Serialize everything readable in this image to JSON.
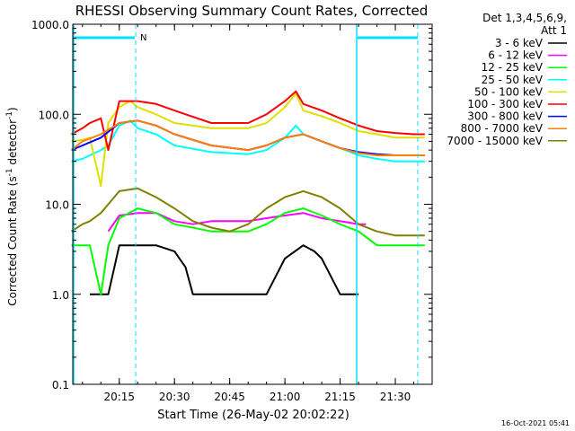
{
  "chart_data": {
    "type": "line",
    "title": "RHESSI Observing Summary Count Rates, Corrected",
    "xlabel": "Start Time (26-May-02 20:02:22)",
    "ylabel": "Corrected Count Rate (s-1 detector-1)",
    "ylabel_parts": {
      "main": "Corrected Count Rate (s",
      "sup1": "-1",
      "mid": " detector",
      "sup2": "-1",
      "end": ")"
    },
    "yscale": "log",
    "ylim": [
      0.1,
      1000
    ],
    "ytick_labels": [
      "0.1",
      "1.0",
      "10.0",
      "100.0",
      "1000.0"
    ],
    "ytick_values": [
      0.1,
      1,
      10,
      100,
      1000
    ],
    "xlim": [
      "20:02:22",
      "21:40:00"
    ],
    "xtick_labels": [
      "20:15",
      "20:30",
      "20:45",
      "21:00",
      "21:15",
      "21:30"
    ],
    "footer_date": "16-Oct-2021 05:41",
    "legend_header": [
      "Det 1,3,4,5,6,9,",
      "Att 1"
    ],
    "legend_position": "right",
    "night_marker_label": "N",
    "night_bar_color": "#00e0ff",
    "series": [
      {
        "name": "3 - 6 keV",
        "color": "#000000",
        "x": [
          "20:07",
          "20:10",
          "20:12",
          "20:15",
          "20:20",
          "20:25",
          "20:30",
          "20:33",
          "20:35",
          "20:40",
          "20:50",
          "20:55",
          "21:00",
          "21:05",
          "21:08",
          "21:10",
          "21:15",
          "21:20"
        ],
        "values": [
          1,
          1,
          1,
          3.5,
          3.5,
          3.5,
          3.0,
          2.0,
          1.0,
          1.0,
          1.0,
          1.0,
          2.5,
          3.5,
          3.0,
          2.5,
          1.0,
          1.0
        ]
      },
      {
        "name": "6 - 12 keV",
        "color": "#ff00ff",
        "x": [
          "20:12",
          "20:15",
          "20:20",
          "20:25",
          "20:30",
          "20:35",
          "20:40",
          "20:45",
          "20:50",
          "20:55",
          "21:00",
          "21:05",
          "21:10",
          "21:15",
          "21:20",
          "21:22"
        ],
        "values": [
          5.0,
          7.5,
          8.0,
          8.0,
          6.5,
          6.0,
          6.5,
          6.5,
          6.5,
          7.0,
          7.5,
          8.0,
          7.0,
          6.5,
          6.0,
          6.0
        ]
      },
      {
        "name": "12 - 25 keV",
        "color": "#00ff00",
        "x": [
          "20:02",
          "20:05",
          "20:07",
          "20:10",
          "20:12",
          "20:15",
          "20:20",
          "20:25",
          "20:30",
          "20:35",
          "20:40",
          "20:45",
          "20:50",
          "20:55",
          "21:00",
          "21:05",
          "21:10",
          "21:15",
          "21:20",
          "21:25",
          "21:30",
          "21:35",
          "21:38"
        ],
        "values": [
          3.5,
          3.5,
          3.5,
          1.0,
          3.5,
          7.0,
          9.0,
          8.0,
          6.0,
          5.5,
          5.0,
          5.0,
          5.0,
          6.0,
          8.0,
          9.0,
          7.5,
          6.0,
          5.0,
          3.5,
          3.5,
          3.5,
          3.5
        ]
      },
      {
        "name": "25 - 50 keV",
        "color": "#00ffff",
        "x": [
          "20:02",
          "20:05",
          "20:07",
          "20:10",
          "20:12",
          "20:15",
          "20:18",
          "20:20",
          "20:25",
          "20:30",
          "20:40",
          "20:50",
          "20:55",
          "21:00",
          "21:03",
          "21:05",
          "21:10",
          "21:15",
          "21:20",
          "21:25",
          "21:30",
          "21:35",
          "21:38"
        ],
        "values": [
          30,
          32,
          35,
          40,
          45,
          75,
          85,
          70,
          60,
          45,
          38,
          36,
          40,
          55,
          75,
          60,
          50,
          42,
          35,
          32,
          30,
          30,
          30
        ]
      },
      {
        "name": "50 - 100 keV",
        "color": "#e0e000",
        "x": [
          "20:02",
          "20:05",
          "20:07",
          "20:10",
          "20:12",
          "20:15",
          "20:18",
          "20:20",
          "20:25",
          "20:30",
          "20:40",
          "20:50",
          "20:55",
          "21:00",
          "21:03",
          "21:05",
          "21:10",
          "21:15",
          "21:20",
          "21:25",
          "21:30",
          "21:35",
          "21:38"
        ],
        "values": [
          50,
          52,
          55,
          16,
          80,
          120,
          140,
          120,
          100,
          80,
          70,
          70,
          80,
          120,
          170,
          110,
          95,
          80,
          65,
          60,
          55,
          55,
          55
        ]
      },
      {
        "name": "100 - 300 keV",
        "color": "#ff0000",
        "x": [
          "20:02",
          "20:05",
          "20:07",
          "20:10",
          "20:12",
          "20:15",
          "20:20",
          "20:25",
          "20:30",
          "20:40",
          "20:50",
          "20:55",
          "21:00",
          "21:03",
          "21:05",
          "21:10",
          "21:15",
          "21:20",
          "21:25",
          "21:30",
          "21:35",
          "21:38"
        ],
        "values": [
          60,
          70,
          80,
          90,
          40,
          140,
          140,
          130,
          110,
          80,
          80,
          100,
          140,
          180,
          130,
          110,
          90,
          75,
          65,
          62,
          60,
          60
        ]
      },
      {
        "name": "300 - 800 keV",
        "color": "#0000ff",
        "x": [
          "20:02",
          "20:05",
          "20:10",
          "20:15",
          "20:20",
          "20:25",
          "20:30",
          "20:40",
          "20:50",
          "20:55",
          "21:00",
          "21:05",
          "21:10",
          "21:15",
          "21:20",
          "21:25",
          "21:30",
          "21:35",
          "21:38"
        ],
        "values": [
          40,
          45,
          55,
          80,
          85,
          75,
          60,
          45,
          40,
          45,
          55,
          60,
          50,
          42,
          38,
          36,
          35,
          35,
          35
        ]
      },
      {
        "name": "800 - 7000 keV",
        "color": "#ff8000",
        "x": [
          "20:02",
          "20:05",
          "20:10",
          "20:15",
          "20:20",
          "20:25",
          "20:30",
          "20:40",
          "20:50",
          "20:55",
          "21:00",
          "21:05",
          "21:10",
          "21:15",
          "21:20",
          "21:25",
          "21:30",
          "21:35",
          "21:38"
        ],
        "values": [
          40,
          50,
          60,
          80,
          85,
          75,
          60,
          45,
          40,
          45,
          55,
          60,
          50,
          42,
          37,
          35,
          35,
          35,
          35
        ]
      },
      {
        "name": "7000 - 15000 keV",
        "color": "#808000",
        "x": [
          "20:02",
          "20:05",
          "20:07",
          "20:10",
          "20:12",
          "20:15",
          "20:20",
          "20:25",
          "20:30",
          "20:35",
          "20:40",
          "20:45",
          "20:50",
          "20:55",
          "21:00",
          "21:05",
          "21:10",
          "21:15",
          "21:20",
          "21:25",
          "21:30",
          "21:35",
          "21:38"
        ],
        "values": [
          5.0,
          6.0,
          6.5,
          8.0,
          10.0,
          14.0,
          15.0,
          12.0,
          9.0,
          6.5,
          5.5,
          5.0,
          6.0,
          9.0,
          12.0,
          14.0,
          12.0,
          9.0,
          6.0,
          5.0,
          4.5,
          4.5,
          4.5
        ]
      }
    ]
  }
}
